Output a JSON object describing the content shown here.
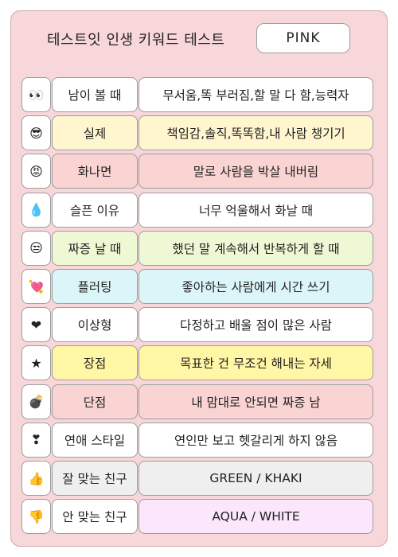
{
  "header": {
    "title": "테스트잇 인생 키워드 테스트",
    "result": "PINK"
  },
  "rows": [
    {
      "icon": "eyes-icon",
      "glyph": "👀",
      "label": "남이 볼 때",
      "value": "무서움,똑 부러짐,할 말 다 함,능력자",
      "label_bg": "#ffffff",
      "value_bg": "#ffffff"
    },
    {
      "icon": "sunglasses-face-icon",
      "glyph": "😎",
      "label": "실제",
      "value": "책임감,솔직,똑똑함,내 사람 챙기기",
      "label_bg": "#fff6cf",
      "value_bg": "#fff6cf"
    },
    {
      "icon": "angry-face-icon",
      "glyph": "😡",
      "label": "화나면",
      "value": "말로 사람을 박살 내버림",
      "label_bg": "#fad3d3",
      "value_bg": "#fad3d3"
    },
    {
      "icon": "droplet-icon",
      "glyph": "💧",
      "label": "슬픈 이유",
      "value": "너무 억울해서 화날 때",
      "label_bg": "#ffffff",
      "value_bg": "#ffffff"
    },
    {
      "icon": "unamused-face-icon",
      "glyph": "😒",
      "label": "짜증 날 때",
      "value": "했던 말 계속해서 반복하게 할 때",
      "label_bg": "#eef8d4",
      "value_bg": "#eef8d4"
    },
    {
      "icon": "heart-arrow-icon",
      "glyph": "💘",
      "label": "플러팅",
      "value": "좋아하는 사람에게 시간 쓰기",
      "label_bg": "#dcf5f8",
      "value_bg": "#dcf5f8"
    },
    {
      "icon": "heart-icon",
      "glyph": "❤",
      "label": "이상형",
      "value": "다정하고 배울 점이 많은 사람",
      "label_bg": "#ffffff",
      "value_bg": "#ffffff"
    },
    {
      "icon": "star-icon",
      "glyph": "★",
      "label": "장점",
      "value": "목표한 건 무조건 해내는 자세",
      "label_bg": "#fff6a6",
      "value_bg": "#fff6a6"
    },
    {
      "icon": "bomb-icon",
      "glyph": "💣",
      "label": "단점",
      "value": "내 맘대로 안되면 짜증 남",
      "label_bg": "#fad3d3",
      "value_bg": "#fad3d3"
    },
    {
      "icon": "heart-exclamation-icon",
      "glyph": "❣",
      "label": "연애 스타일",
      "value": "연인만 보고 헷갈리게 하지 않음",
      "label_bg": "#ffffff",
      "value_bg": "#ffffff"
    },
    {
      "icon": "thumbs-up-icon",
      "glyph": "👍",
      "label": "잘 맞는 친구",
      "value": "GREEN / KHAKI",
      "label_bg": "#efefef",
      "value_bg": "#efefef"
    },
    {
      "icon": "thumbs-down-icon",
      "glyph": "👎",
      "label": "안 맞는 친구",
      "value": "AQUA / WHITE",
      "label_bg": "#ffffff",
      "value_bg": "#fbe6fb"
    }
  ]
}
